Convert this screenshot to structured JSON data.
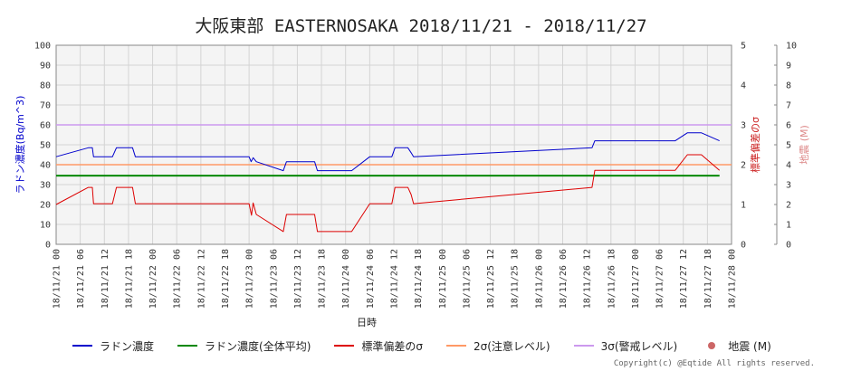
{
  "title": "大阪東部 EASTERNOSAKA 2018/11/21 - 2018/11/27",
  "copyright": "Copyright(c) @Eqtide All rights reserved.",
  "colors": {
    "radon": "#0000cc",
    "average": "#008800",
    "sigma": "#dd0000",
    "sigma2": "#ff9966",
    "sigma3": "#cc99ee",
    "quake": "#cc6666",
    "left_axis": "#0000cc",
    "right_axis": "#cc2222",
    "quake_axis": "#dd8888"
  },
  "legend": [
    {
      "label": "ラドン濃度",
      "color": "#0000cc",
      "kind": "line"
    },
    {
      "label": "ラドン濃度(全体平均)",
      "color": "#008800",
      "kind": "line"
    },
    {
      "label": "標準偏差のσ",
      "color": "#dd0000",
      "kind": "line"
    },
    {
      "label": "2σ(注意レベル)",
      "color": "#ff9966",
      "kind": "line"
    },
    {
      "label": "3σ(警戒レベル)",
      "color": "#cc99ee",
      "kind": "line"
    },
    {
      "label": "地震 (M)",
      "color": "#cc6666",
      "kind": "dot"
    }
  ],
  "chart_data": {
    "type": "line",
    "xlabel": "日時",
    "ylabel": "ラドン濃度(Bq/m^3)",
    "y2label": "標準偏差のσ",
    "y3label": "地震 (M)",
    "ylim": [
      0,
      100
    ],
    "y2lim": [
      0,
      5
    ],
    "y3lim": [
      0,
      10
    ],
    "yticks": [
      0,
      10,
      20,
      30,
      40,
      50,
      60,
      70,
      80,
      90,
      100
    ],
    "y2ticks": [
      0,
      1,
      2,
      3,
      4,
      5
    ],
    "y3ticks": [
      0,
      1,
      2,
      3,
      4,
      5,
      6,
      7,
      8,
      9,
      10
    ],
    "x_hours_range": [
      0,
      168
    ],
    "x_tick_labels": [
      "18/11/21 00",
      "18/11/21 06",
      "18/11/21 12",
      "18/11/21 18",
      "18/11/22 00",
      "18/11/22 06",
      "18/11/22 12",
      "18/11/22 18",
      "18/11/23 00",
      "18/11/23 06",
      "18/11/23 12",
      "18/11/23 18",
      "18/11/24 00",
      "18/11/24 06",
      "18/11/24 12",
      "18/11/24 18",
      "18/11/25 00",
      "18/11/25 06",
      "18/11/25 12",
      "18/11/25 18",
      "18/11/26 00",
      "18/11/26 06",
      "18/11/26 12",
      "18/11/26 18",
      "18/11/27 00",
      "18/11/27 06",
      "18/11/27 12",
      "18/11/27 18",
      "18/11/28 00"
    ],
    "grid": true,
    "legend_position": "bottom",
    "series": [
      {
        "name": "ラドン濃度",
        "axis": "left",
        "x": [
          0,
          8,
          9,
          9.3,
          14,
          15,
          19,
          19.7,
          48,
          48.5,
          49,
          49.8,
          56.5,
          57.3,
          64.3,
          65,
          73.5,
          78,
          83.5,
          84.3,
          87.5,
          88.3,
          88.9,
          133.3,
          134,
          154,
          157,
          160.5,
          165
        ],
        "y": [
          44,
          48.5,
          48.5,
          44,
          44,
          48.5,
          48.5,
          44,
          44,
          41.5,
          43.5,
          41.5,
          37,
          41.5,
          41.5,
          37,
          37,
          44,
          44,
          48.5,
          48.5,
          46,
          44,
          48.5,
          52,
          52,
          56,
          56,
          52
        ]
      },
      {
        "name": "ラドン濃度(全体平均)",
        "axis": "left",
        "x": [
          0,
          165
        ],
        "y": [
          34.5,
          34.5
        ]
      },
      {
        "name": "標準偏差のσ",
        "axis": "right",
        "x": [
          0,
          8,
          9,
          9.3,
          14,
          15,
          19,
          19.7,
          48,
          48.6,
          49,
          49.8,
          56.5,
          57.3,
          64.3,
          65,
          73.5,
          78,
          83.5,
          84.3,
          87.5,
          88.3,
          88.9,
          133.3,
          134,
          154,
          157,
          160.5,
          165
        ],
        "y": [
          1.0,
          1.43,
          1.43,
          1.02,
          1.02,
          1.43,
          1.43,
          1.02,
          1.02,
          0.73,
          1.04,
          0.75,
          0.32,
          0.75,
          0.75,
          0.32,
          0.32,
          1.02,
          1.02,
          1.43,
          1.43,
          1.25,
          1.02,
          1.43,
          1.86,
          1.86,
          2.25,
          2.25,
          1.86
        ]
      },
      {
        "name": "2σ(注意レベル)",
        "axis": "right",
        "x": [
          0,
          168
        ],
        "y": [
          2.0,
          2.0
        ]
      },
      {
        "name": "3σ(警戒レベル)",
        "axis": "right",
        "x": [
          0,
          168
        ],
        "y": [
          3.0,
          3.0
        ]
      }
    ],
    "earthquakes": []
  }
}
